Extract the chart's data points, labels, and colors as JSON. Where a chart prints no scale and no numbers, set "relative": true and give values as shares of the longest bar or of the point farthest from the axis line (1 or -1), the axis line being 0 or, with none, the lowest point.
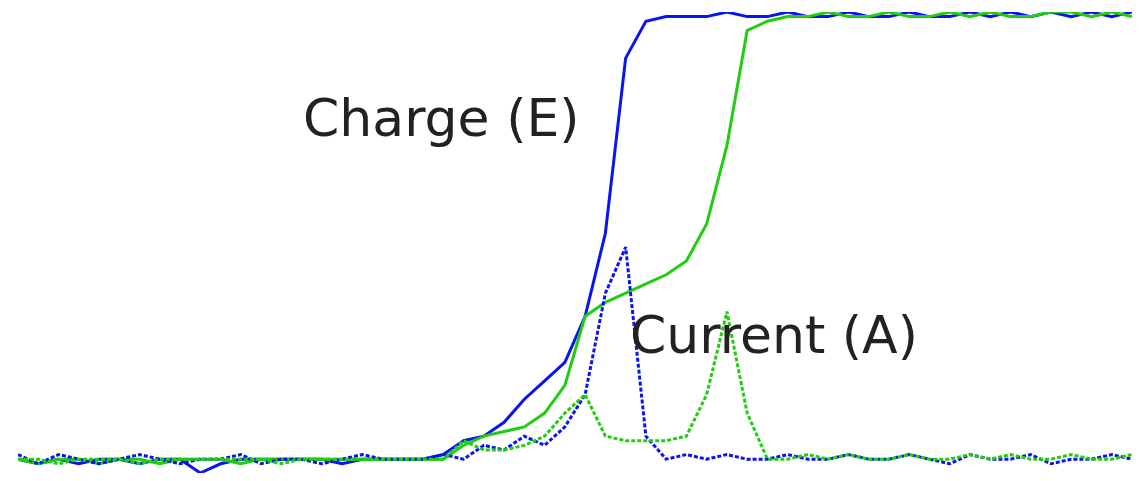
{
  "chart_data": {
    "type": "line",
    "relative": true,
    "marker": "none",
    "categories": [
      null,
      null,
      null,
      null,
      null,
      null,
      null,
      null,
      null,
      null,
      null,
      null,
      null,
      null,
      null,
      null,
      null,
      null,
      null,
      null,
      null,
      null,
      null,
      null,
      null,
      null,
      null,
      null,
      null,
      null,
      null,
      null,
      null,
      null,
      null,
      null,
      null,
      null,
      null,
      null,
      null,
      null,
      null,
      null,
      null,
      null,
      null,
      null,
      null,
      null,
      null,
      null,
      null,
      null,
      null,
      null
    ],
    "series": [
      {
        "color": "#0a14f0",
        "line_style": "solid",
        "values": [
          0.03,
          0.02,
          0.03,
          0.02,
          0.03,
          0.03,
          0.02,
          0.03,
          0.03,
          0.0,
          0.02,
          0.03,
          0.03,
          0.03,
          0.03,
          0.03,
          0.02,
          0.03,
          0.03,
          0.03,
          0.03,
          0.04,
          0.07,
          0.08,
          0.11,
          0.16,
          0.2,
          0.24,
          0.34,
          0.52,
          0.9,
          0.98,
          0.99,
          0.99,
          0.99,
          1.0,
          0.99,
          0.99,
          1.0,
          0.99,
          0.99,
          1.0,
          0.99,
          0.99,
          1.0,
          0.99,
          0.99,
          1.0,
          0.99,
          1.0,
          0.99,
          1.0,
          0.99,
          1.0,
          0.99,
          1.0
        ]
      },
      {
        "color": "#22cc10",
        "line_style": "solid",
        "values": [
          0.03,
          0.02,
          0.03,
          0.03,
          0.02,
          0.03,
          0.03,
          0.02,
          0.03,
          0.03,
          0.03,
          0.02,
          0.03,
          0.03,
          0.03,
          0.03,
          0.03,
          0.03,
          0.03,
          0.03,
          0.03,
          0.03,
          0.06,
          0.08,
          0.09,
          0.1,
          0.13,
          0.19,
          0.34,
          0.37,
          0.39,
          0.41,
          0.43,
          0.46,
          0.54,
          0.71,
          0.96,
          0.98,
          0.99,
          0.99,
          1.0,
          0.99,
          0.99,
          1.0,
          0.99,
          0.99,
          1.0,
          0.99,
          1.0,
          0.99,
          0.99,
          1.0,
          1.0,
          0.99,
          1.0,
          0.99
        ]
      },
      {
        "color": "#0a14f0",
        "line_style": "dotted",
        "values": [
          0.04,
          0.02,
          0.04,
          0.03,
          0.02,
          0.03,
          0.04,
          0.03,
          0.02,
          0.03,
          0.03,
          0.04,
          0.02,
          0.03,
          0.03,
          0.02,
          0.03,
          0.04,
          0.03,
          0.03,
          0.03,
          0.04,
          0.03,
          0.06,
          0.05,
          0.08,
          0.06,
          0.1,
          0.17,
          0.39,
          0.49,
          0.08,
          0.03,
          0.04,
          0.03,
          0.04,
          0.03,
          0.03,
          0.04,
          0.03,
          0.03,
          0.04,
          0.03,
          0.03,
          0.04,
          0.03,
          0.02,
          0.04,
          0.03,
          0.03,
          0.04,
          0.02,
          0.03,
          0.03,
          0.04,
          0.03
        ]
      },
      {
        "color": "#22cc10",
        "line_style": "dotted",
        "values": [
          0.03,
          0.03,
          0.02,
          0.03,
          0.03,
          0.03,
          0.02,
          0.03,
          0.03,
          0.03,
          0.03,
          0.03,
          0.03,
          0.02,
          0.03,
          0.03,
          0.03,
          0.03,
          0.03,
          0.03,
          0.03,
          0.03,
          0.07,
          0.05,
          0.05,
          0.06,
          0.08,
          0.13,
          0.17,
          0.08,
          0.07,
          0.07,
          0.07,
          0.08,
          0.17,
          0.35,
          0.13,
          0.03,
          0.03,
          0.04,
          0.03,
          0.04,
          0.03,
          0.03,
          0.04,
          0.03,
          0.03,
          0.04,
          0.03,
          0.04,
          0.03,
          0.03,
          0.04,
          0.03,
          0.03,
          0.04
        ]
      }
    ],
    "annotations": [
      "Charge (E)",
      "Current (A)"
    ]
  }
}
